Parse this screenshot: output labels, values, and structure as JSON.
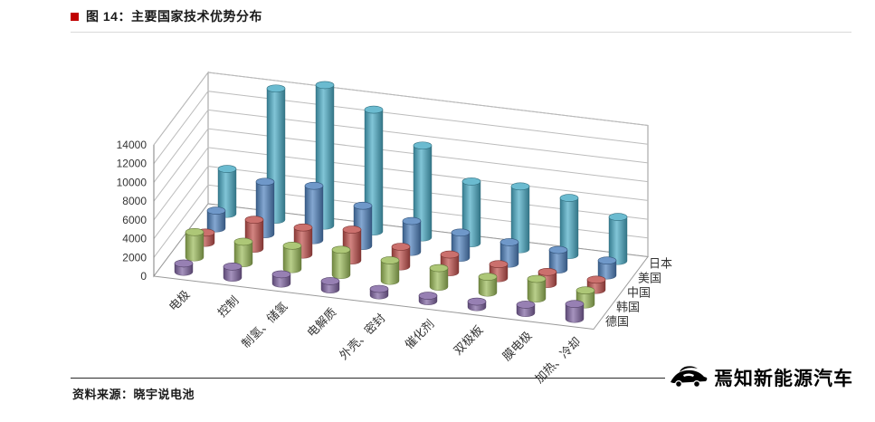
{
  "header": {
    "title": "图 14：主要国家技术优势分布",
    "bullet_color": "#C00000"
  },
  "footer": {
    "source": "资料来源：晓宇说电池",
    "logo_text": "焉知新能源汽车"
  },
  "chart_data": {
    "type": "bar",
    "style": "3d-cylinder-columns",
    "title": "主要国家技术优势分布",
    "categories": [
      "电极",
      "控制",
      "制氢、储氢",
      "电解质",
      "外壳、密封",
      "催化剂",
      "双极板",
      "膜电极",
      "加热、冷却"
    ],
    "series": [
      {
        "name": "日本",
        "color": "#4BACC6",
        "values": [
          4800,
          14000,
          15000,
          13000,
          9800,
          6600,
          6700,
          6100,
          4700
        ]
      },
      {
        "name": "美国",
        "color": "#4F81BD",
        "values": [
          1900,
          5600,
          5800,
          4300,
          3300,
          2700,
          2300,
          2100,
          1600
        ]
      },
      {
        "name": "中国",
        "color": "#C0504D",
        "values": [
          1100,
          3100,
          2900,
          3300,
          2100,
          1900,
          1500,
          1300,
          1100
        ]
      },
      {
        "name": "韩国",
        "color": "#9BBB59",
        "values": [
          2700,
          2300,
          2500,
          2700,
          2200,
          2000,
          1700,
          2100,
          1500
        ]
      },
      {
        "name": "德国",
        "color": "#8064A2",
        "values": [
          900,
          1200,
          1000,
          900,
          700,
          600,
          600,
          900,
          1600
        ]
      }
    ],
    "series_axis_order_front_to_back": [
      "德国",
      "韩国",
      "中国",
      "美国",
      "日本"
    ],
    "ylim": [
      0,
      14000
    ],
    "yticks": [
      0,
      2000,
      4000,
      6000,
      8000,
      10000,
      12000,
      14000
    ],
    "grid": true,
    "legend_position": "right-depth-axis"
  }
}
